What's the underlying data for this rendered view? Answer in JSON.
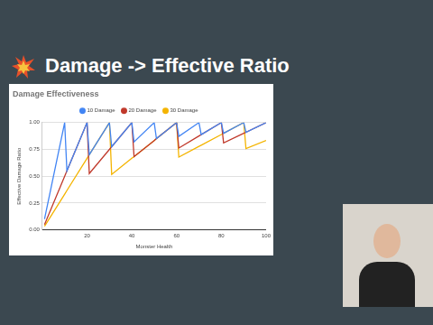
{
  "slide": {
    "title": "Damage -> Effective Ratio"
  },
  "chart_data": {
    "type": "line",
    "title": "Damage Effectiveness",
    "x_label": "Monster Health",
    "y_label": "Effective Damage Ratio",
    "x": [
      1,
      10,
      11,
      20,
      21,
      30,
      31,
      40,
      41,
      50,
      51,
      60,
      61,
      70,
      71,
      80,
      81,
      90,
      91,
      100
    ],
    "series": [
      {
        "name": "10 Damage",
        "color": "#4285f4",
        "values": [
          0.1,
          1,
          0.55,
          1,
          0.7,
          1,
          0.775,
          1,
          0.82,
          1,
          0.85,
          1,
          0.871,
          1,
          0.8875,
          1,
          0.9,
          1,
          0.91,
          1
        ]
      },
      {
        "name": "20 Damage",
        "color": "#c0392b",
        "values": [
          0.05,
          0.5,
          0.55,
          1,
          0.525,
          0.75,
          0.775,
          1,
          0.683,
          0.833,
          0.85,
          1,
          0.7625,
          0.875,
          0.8875,
          1,
          0.81,
          0.9,
          0.91,
          1
        ]
      },
      {
        "name": "30 Damage",
        "color": "#f4b400",
        "values": [
          0.033,
          0.333,
          0.367,
          0.667,
          0.7,
          1,
          0.517,
          0.667,
          0.683,
          0.833,
          0.85,
          1,
          0.678,
          0.778,
          0.789,
          0.889,
          0.9,
          1,
          0.758,
          0.833
        ]
      }
    ],
    "xlim": [
      0,
      100
    ],
    "xticks": [
      20,
      40,
      60,
      80,
      100
    ],
    "ylim": [
      0,
      1
    ],
    "yticks": [
      {
        "value": 0,
        "label": "0.00"
      },
      0.25,
      {
        "value": 0.5,
        "label": "0.50"
      },
      0.75,
      {
        "value": 1,
        "label": "1.00"
      }
    ],
    "grid": "y",
    "legend": "top"
  }
}
